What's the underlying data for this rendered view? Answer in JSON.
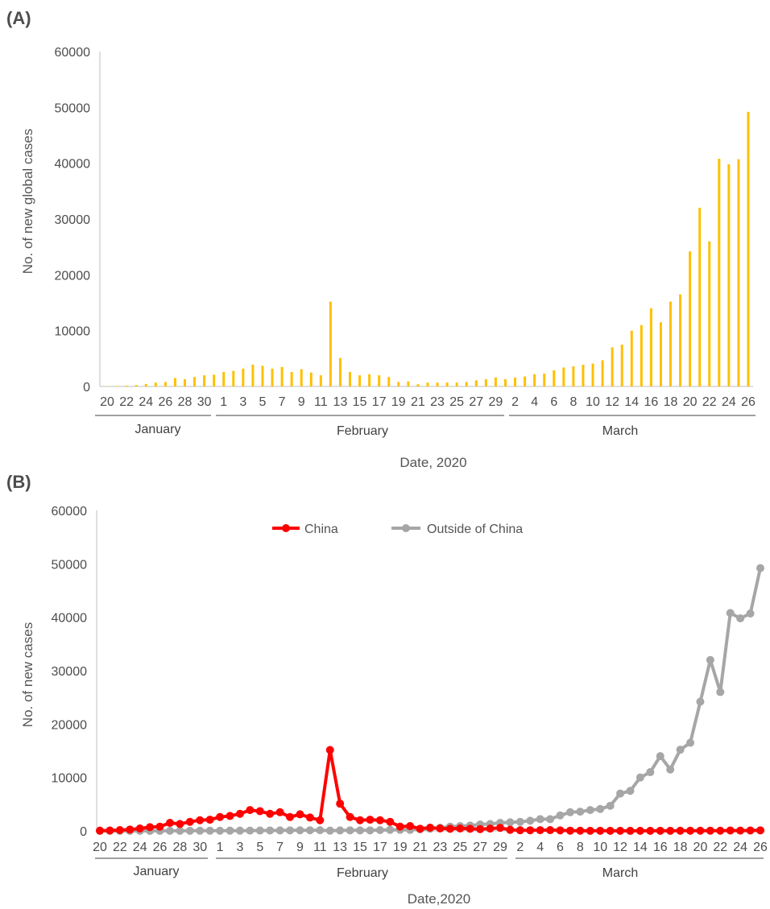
{
  "panels": [
    {
      "label": "(A)",
      "xlabel": "Date, 2020",
      "ylabel": "No. of new global cases"
    },
    {
      "label": "(B)",
      "xlabel": "Date,2020",
      "ylabel": "No. of new cases"
    }
  ],
  "months": [
    "January",
    "February",
    "March"
  ],
  "colors": {
    "bar": "#ffc000",
    "china": "#ff0000",
    "outside": "#a6a6a6",
    "axis": "#bfbfbf",
    "text": "#4d4d4d"
  },
  "chart_data": [
    {
      "type": "bar",
      "title": "",
      "xlabel": "Date, 2020",
      "ylabel": "No. of new global cases",
      "ylim": [
        0,
        60000
      ],
      "yticks": [
        0,
        10000,
        20000,
        30000,
        40000,
        50000,
        60000
      ],
      "grid": false,
      "x_tick_labels": [
        "20",
        "22",
        "24",
        "26",
        "28",
        "30",
        "1",
        "3",
        "5",
        "7",
        "9",
        "11",
        "13",
        "15",
        "17",
        "19",
        "21",
        "23",
        "25",
        "27",
        "29",
        "2",
        "4",
        "6",
        "8",
        "10",
        "12",
        "14",
        "16",
        "18",
        "20",
        "22",
        "24",
        "26"
      ],
      "categories": [
        "Jan 20",
        "Jan 21",
        "Jan 22",
        "Jan 23",
        "Jan 24",
        "Jan 25",
        "Jan 26",
        "Jan 27",
        "Jan 28",
        "Jan 29",
        "Jan 30",
        "Jan 31",
        "Feb 1",
        "Feb 2",
        "Feb 3",
        "Feb 4",
        "Feb 5",
        "Feb 6",
        "Feb 7",
        "Feb 8",
        "Feb 9",
        "Feb 10",
        "Feb 11",
        "Feb 12",
        "Feb 13",
        "Feb 14",
        "Feb 15",
        "Feb 16",
        "Feb 17",
        "Feb 18",
        "Feb 19",
        "Feb 20",
        "Feb 21",
        "Feb 22",
        "Feb 23",
        "Feb 24",
        "Feb 25",
        "Feb 26",
        "Feb 27",
        "Feb 28",
        "Feb 29",
        "Mar 1",
        "Mar 2",
        "Mar 3",
        "Mar 4",
        "Mar 5",
        "Mar 6",
        "Mar 7",
        "Mar 8",
        "Mar 9",
        "Mar 10",
        "Mar 11",
        "Mar 12",
        "Mar 13",
        "Mar 14",
        "Mar 15",
        "Mar 16",
        "Mar 17",
        "Mar 18",
        "Mar 19",
        "Mar 20",
        "Mar 21",
        "Mar 22",
        "Mar 23",
        "Mar 24",
        "Mar 25",
        "Mar 26"
      ],
      "values": [
        50,
        80,
        150,
        250,
        450,
        700,
        800,
        1500,
        1300,
        1700,
        2000,
        2100,
        2600,
        2800,
        3200,
        3900,
        3700,
        3200,
        3500,
        2600,
        3100,
        2500,
        2000,
        15200,
        5100,
        2600,
        2000,
        2200,
        2000,
        1700,
        800,
        900,
        400,
        700,
        700,
        700,
        700,
        800,
        1100,
        1300,
        1600,
        1300,
        1600,
        1800,
        2200,
        2300,
        2900,
        3400,
        3600,
        3900,
        4100,
        4700,
        7000,
        7500,
        10000,
        11000,
        14000,
        11500,
        15200,
        16500,
        24200,
        32000,
        26000,
        40800,
        39800,
        40700,
        49200
      ]
    },
    {
      "type": "line",
      "title": "",
      "xlabel": "Date,2020",
      "ylabel": "No. of new cases",
      "ylim": [
        0,
        60000
      ],
      "yticks": [
        0,
        10000,
        20000,
        30000,
        40000,
        50000,
        60000
      ],
      "grid": false,
      "legend": "top-center",
      "x_tick_labels": [
        "20",
        "22",
        "24",
        "26",
        "28",
        "30",
        "1",
        "3",
        "5",
        "7",
        "9",
        "11",
        "13",
        "15",
        "17",
        "19",
        "21",
        "23",
        "25",
        "27",
        "29",
        "2",
        "4",
        "6",
        "8",
        "10",
        "12",
        "14",
        "16",
        "18",
        "20",
        "22",
        "24",
        "26"
      ],
      "series": [
        {
          "name": "China",
          "color": "#ff0000",
          "values": [
            50,
            80,
            150,
            250,
            450,
            700,
            800,
            1500,
            1300,
            1700,
            2000,
            2100,
            2600,
            2800,
            3200,
            3900,
            3700,
            3200,
            3500,
            2600,
            3100,
            2500,
            2000,
            15150,
            5100,
            2600,
            2000,
            2100,
            2000,
            1700,
            800,
            900,
            400,
            600,
            450,
            400,
            450,
            400,
            330,
            430,
            570,
            200,
            125,
            120,
            140,
            145,
            100,
            45,
            40,
            20,
            25,
            20,
            15,
            10,
            20,
            20,
            25,
            15,
            30,
            40,
            40,
            45,
            40,
            80,
            55,
            80,
            100
          ]
        },
        {
          "name": "Outside of China",
          "color": "#a6a6a6",
          "values": [
            0,
            0,
            1,
            2,
            5,
            5,
            10,
            15,
            20,
            25,
            30,
            30,
            40,
            50,
            50,
            60,
            70,
            80,
            90,
            100,
            110,
            120,
            130,
            50,
            90,
            100,
            100,
            100,
            150,
            200,
            200,
            200,
            300,
            400,
            600,
            800,
            900,
            1000,
            1200,
            1300,
            1500,
            1600,
            1700,
            1900,
            2200,
            2200,
            2900,
            3500,
            3600,
            3900,
            4100,
            4700,
            7000,
            7500,
            10000,
            11000,
            14000,
            11500,
            15200,
            16500,
            24200,
            32000,
            26000,
            40800,
            39800,
            40700,
            49200
          ]
        }
      ]
    }
  ]
}
